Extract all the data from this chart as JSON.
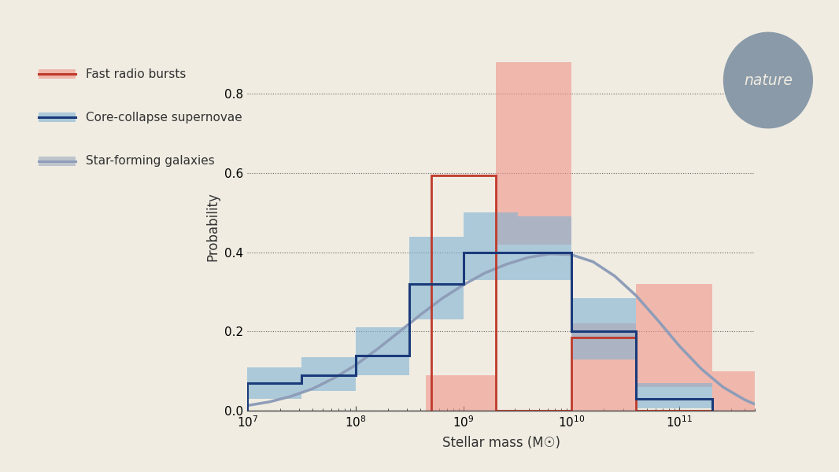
{
  "background_color": "#f0ece2",
  "xlabel": "Stellar mass (M☉)",
  "ylabel": "Probability",
  "xlim_log": [
    7.0,
    11.7
  ],
  "ylim": [
    0,
    0.93
  ],
  "yticks": [
    0,
    0.2,
    0.4,
    0.6,
    0.8
  ],
  "frb_bin_edges_log": [
    8.7,
    9.3,
    10.0,
    10.6,
    11.3
  ],
  "frb_bin_values": [
    0.595,
    0.0,
    0.185,
    0.0
  ],
  "frb_band_edges_log": [
    7.0,
    8.65,
    9.3,
    10.0,
    10.6,
    11.3,
    11.7
  ],
  "frb_band_lo": [
    0.0,
    0.0,
    0.42,
    0.0,
    0.06,
    0.0,
    0.0
  ],
  "frb_band_hi": [
    0.0,
    0.09,
    0.88,
    0.22,
    0.32,
    0.1,
    0.0
  ],
  "ccsn_bin_edges_log": [
    7.0,
    7.5,
    8.0,
    8.5,
    9.0,
    9.5,
    10.0,
    10.6,
    11.3
  ],
  "ccsn_bin_values": [
    0.07,
    0.09,
    0.14,
    0.32,
    0.4,
    0.4,
    0.2,
    0.03
  ],
  "ccsn_band_lo": [
    0.03,
    0.05,
    0.09,
    0.23,
    0.33,
    0.33,
    0.13,
    0.005
  ],
  "ccsn_band_hi": [
    0.11,
    0.135,
    0.21,
    0.44,
    0.5,
    0.49,
    0.285,
    0.07
  ],
  "sfg_curve_log_x": [
    7.0,
    7.2,
    7.4,
    7.6,
    7.8,
    8.0,
    8.2,
    8.4,
    8.6,
    8.8,
    9.0,
    9.2,
    9.4,
    9.6,
    9.8,
    10.0,
    10.2,
    10.4,
    10.6,
    10.8,
    11.0,
    11.2,
    11.4,
    11.6,
    11.7
  ],
  "sfg_curve_y": [
    0.013,
    0.022,
    0.036,
    0.055,
    0.082,
    0.115,
    0.155,
    0.198,
    0.242,
    0.283,
    0.318,
    0.348,
    0.37,
    0.387,
    0.396,
    0.394,
    0.376,
    0.34,
    0.29,
    0.228,
    0.163,
    0.106,
    0.06,
    0.028,
    0.016
  ],
  "frb_color": "#c0392b",
  "frb_fill_color": "#f1948a",
  "ccsn_color": "#1a3a7a",
  "ccsn_fill_color": "#7fb3d3",
  "sfg_color": "#8e9db8",
  "nature_badge_color": "#8a9aa8",
  "nature_text_color": "#f0ece2",
  "legend_labels": [
    "Fast radio bursts",
    "Core-collapse supernovae",
    "Star-forming galaxies"
  ]
}
